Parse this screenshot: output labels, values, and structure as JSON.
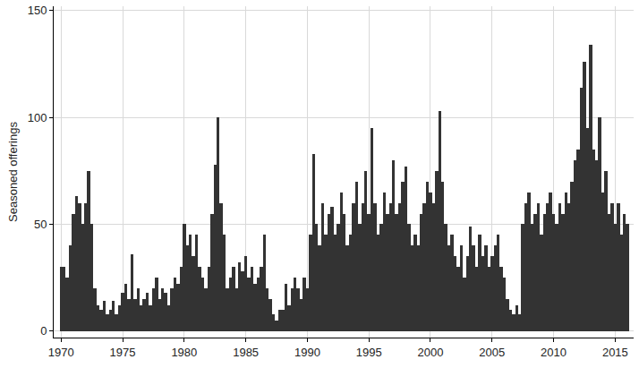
{
  "chart_data": {
    "type": "bar",
    "y_label": "Seasoned offerings",
    "x": [
      1970,
      1970.25,
      1970.5,
      1970.75,
      1971,
      1971.25,
      1971.5,
      1971.75,
      1972,
      1972.25,
      1972.5,
      1972.75,
      1973,
      1973.25,
      1973.5,
      1973.75,
      1974,
      1974.25,
      1974.5,
      1974.75,
      1975,
      1975.25,
      1975.5,
      1975.75,
      1976,
      1976.25,
      1976.5,
      1976.75,
      1977,
      1977.25,
      1977.5,
      1977.75,
      1978,
      1978.25,
      1978.5,
      1978.75,
      1979,
      1979.25,
      1979.5,
      1979.75,
      1980,
      1980.25,
      1980.5,
      1980.75,
      1981,
      1981.25,
      1981.5,
      1981.75,
      1982,
      1982.25,
      1982.5,
      1982.75,
      1983,
      1983.25,
      1983.5,
      1983.75,
      1984,
      1984.25,
      1984.5,
      1984.75,
      1985,
      1985.25,
      1985.5,
      1985.75,
      1986,
      1986.25,
      1986.5,
      1986.75,
      1987,
      1987.25,
      1987.5,
      1987.75,
      1988,
      1988.25,
      1988.5,
      1988.75,
      1989,
      1989.25,
      1989.5,
      1989.75,
      1990,
      1990.25,
      1990.5,
      1990.75,
      1991,
      1991.25,
      1991.5,
      1991.75,
      1992,
      1992.25,
      1992.5,
      1992.75,
      1993,
      1993.25,
      1993.5,
      1993.75,
      1994,
      1994.25,
      1994.5,
      1994.75,
      1995,
      1995.25,
      1995.5,
      1995.75,
      1996,
      1996.25,
      1996.5,
      1996.75,
      1997,
      1997.25,
      1997.5,
      1997.75,
      1998,
      1998.25,
      1998.5,
      1998.75,
      1999,
      1999.25,
      1999.5,
      1999.75,
      2000,
      2000.25,
      2000.5,
      2000.75,
      2001,
      2001.25,
      2001.5,
      2001.75,
      2002,
      2002.25,
      2002.5,
      2002.75,
      2003,
      2003.25,
      2003.5,
      2003.75,
      2004,
      2004.25,
      2004.5,
      2004.75,
      2005,
      2005.25,
      2005.5,
      2005.75,
      2006,
      2006.25,
      2006.5,
      2006.75,
      2007,
      2007.25,
      2007.5,
      2007.75,
      2008,
      2008.25,
      2008.5,
      2008.75,
      2009,
      2009.25,
      2009.5,
      2009.75,
      2010,
      2010.25,
      2010.5,
      2010.75,
      2011,
      2011.25,
      2011.5,
      2011.75,
      2012,
      2012.25,
      2012.5,
      2012.75,
      2013,
      2013.25,
      2013.5,
      2013.75,
      2014,
      2014.25,
      2014.5,
      2014.75,
      2015,
      2015.25,
      2015.5,
      2015.75,
      2016
    ],
    "values": [
      30,
      30,
      25,
      40,
      55,
      63,
      60,
      50,
      60,
      75,
      50,
      20,
      12,
      10,
      14,
      8,
      10,
      14,
      8,
      12,
      18,
      22,
      15,
      36,
      15,
      20,
      12,
      15,
      18,
      12,
      20,
      25,
      15,
      20,
      18,
      12,
      20,
      25,
      22,
      30,
      50,
      40,
      45,
      35,
      45,
      30,
      25,
      20,
      30,
      55,
      78,
      100,
      60,
      45,
      20,
      25,
      30,
      20,
      32,
      28,
      35,
      25,
      30,
      22,
      25,
      30,
      45,
      20,
      15,
      8,
      5,
      10,
      10,
      22,
      12,
      20,
      25,
      20,
      15,
      25,
      20,
      45,
      83,
      50,
      40,
      60,
      45,
      55,
      58,
      45,
      50,
      65,
      55,
      40,
      45,
      60,
      70,
      50,
      60,
      75,
      55,
      95,
      60,
      45,
      50,
      65,
      55,
      60,
      80,
      55,
      60,
      70,
      77,
      50,
      40,
      45,
      40,
      55,
      60,
      70,
      65,
      60,
      75,
      103,
      70,
      50,
      40,
      45,
      35,
      30,
      40,
      25,
      35,
      49,
      40,
      30,
      45,
      35,
      40,
      30,
      35,
      40,
      45,
      30,
      25,
      15,
      10,
      8,
      12,
      8,
      50,
      60,
      65,
      50,
      55,
      60,
      45,
      55,
      60,
      65,
      55,
      50,
      60,
      55,
      65,
      60,
      70,
      80,
      85,
      114,
      126,
      95,
      134,
      85,
      80,
      100,
      65,
      75,
      55,
      60,
      50,
      60,
      45,
      55,
      50
    ],
    "color": "#333333",
    "xlim": [
      1969.4,
      2016.5
    ],
    "xticks": [
      1970,
      1975,
      1980,
      1985,
      1990,
      1995,
      2000,
      2005,
      2010,
      2015
    ],
    "ylim": [
      -3,
      152
    ],
    "yticks": [
      0,
      50,
      100,
      150
    ],
    "grid": true
  }
}
